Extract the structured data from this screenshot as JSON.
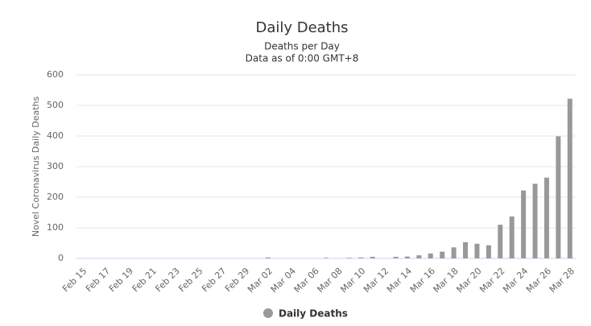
{
  "chart_data": {
    "type": "bar",
    "title": "Daily Deaths",
    "subtitle": [
      "Deaths per Day",
      "Data as of 0:00 GMT+8"
    ],
    "y_axis_label": "Novel Coronavirus Daily Deaths",
    "categories": [
      "Feb 15",
      null,
      "Feb 17",
      null,
      "Feb 19",
      null,
      "Feb 21",
      null,
      "Feb 23",
      null,
      "Feb 25",
      null,
      "Feb 27",
      null,
      "Feb 29",
      null,
      "Mar 02",
      null,
      "Mar 04",
      null,
      "Mar 06",
      null,
      "Mar 08",
      null,
      "Mar 10",
      null,
      "Mar 12",
      null,
      "Mar 14",
      null,
      "Mar 16",
      null,
      "Mar 18",
      null,
      "Mar 20",
      null,
      "Mar 22",
      null,
      "Mar 24",
      null,
      "Mar 26",
      null,
      "Mar 28"
    ],
    "series": [
      {
        "name": "Daily Deaths",
        "color": "#999999",
        "values": [
          0,
          0,
          0,
          0,
          0,
          0,
          0,
          0,
          0,
          0,
          0,
          0,
          0,
          0,
          0,
          0,
          3,
          0,
          0,
          0,
          0,
          2,
          0,
          2,
          3,
          5,
          0,
          5,
          6,
          10,
          16,
          22,
          36,
          53,
          48,
          43,
          110,
          137,
          222,
          244,
          264,
          399,
          522
        ]
      }
    ],
    "ylim": [
      0,
      600
    ],
    "yticks": [
      0,
      100,
      200,
      300,
      400,
      500,
      600
    ],
    "grid": true,
    "legend": "bottom"
  }
}
